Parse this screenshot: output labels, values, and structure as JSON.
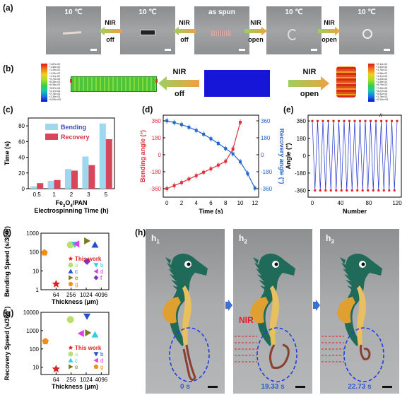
{
  "panel_labels": {
    "a": "(a)",
    "b": "(b)",
    "c": "(c)",
    "d": "(d)",
    "e": "(e)",
    "f": "(f)",
    "g": "(g)",
    "h": "(h)"
  },
  "panel_a": {
    "photos": [
      "10 ℃",
      "10 ℃",
      "as spun",
      "10 ℃",
      "10 ℃"
    ],
    "arrows": [
      {
        "line1": "NIR",
        "line2": "off"
      },
      {
        "line1": "NIR",
        "line2": "off"
      },
      {
        "line1": "NIR",
        "line2": "open"
      },
      {
        "line1": "NIR",
        "line2": "open"
      }
    ]
  },
  "panel_b": {
    "arrow_left": {
      "line1": "NIR",
      "line2": "off"
    },
    "arrow_right": {
      "line1": "NIR",
      "line2": "open"
    },
    "legend_left": [
      "+1.67e-02",
      "+1.53e-02",
      "+1.39e-02",
      "+1.25e-02",
      "+1.11e-02",
      "+9.74e-03",
      "+8.35e-03",
      "+6.96e-03",
      "+5.57e-03",
      "+4.17e-03",
      "+2.78e-03",
      "+1.39e-03",
      "+0.00e+00"
    ],
    "legend_right": [
      "+2.11e-02",
      "+1.93e-02",
      "+1.76e-02",
      "+1.58e-02",
      "+1.41e-02",
      "+1.23e-02",
      "+1.06e-02",
      "+8.79e-03",
      "+7.03e-03",
      "+5.27e-03",
      "+3.52e-03",
      "+1.76e-03",
      "+0.00e+00"
    ]
  },
  "chart_data": [
    {
      "id": "c",
      "type": "bar",
      "categories": [
        "0.5",
        "1",
        "2",
        "3",
        "5"
      ],
      "series": [
        {
          "name": "Bending",
          "color": "#9fd8ee",
          "values": [
            3,
            10,
            25,
            41,
            83
          ]
        },
        {
          "name": "Recovery",
          "color": "#d9455a",
          "values": [
            7,
            11,
            23,
            30,
            63
          ]
        }
      ],
      "ylabel": "Time (s)",
      "xlabel_line1": "Fe3O4/PAN",
      "xlabel_line2": "Electrospinning Time (h)",
      "ylim": [
        0,
        90
      ],
      "yticks": [
        "0",
        "20",
        "40",
        "60",
        "80"
      ]
    },
    {
      "id": "d",
      "type": "line",
      "xlabel": "Time (s)",
      "ylabel_left": "Bending angle (°)",
      "ylabel_right": "Recovery angle (°)",
      "xticks": [
        "0",
        "2",
        "4",
        "6",
        "8",
        "10",
        "12"
      ],
      "yticks_left": [
        "360",
        "180",
        "0",
        "-180",
        "-360"
      ],
      "yticks_right": [
        "360",
        "180",
        "0",
        "-180",
        "-360"
      ],
      "xlim": [
        -0.5,
        12.5
      ],
      "ylim": [
        -450,
        420
      ],
      "series": [
        {
          "name": "Bending",
          "color": "#e0303c",
          "x": [
            0,
            1,
            2,
            3,
            4,
            5,
            6,
            7,
            8,
            9,
            10
          ],
          "y": [
            -360,
            -328,
            -295,
            -258,
            -222,
            -186,
            -150,
            -110,
            -70,
            60,
            345
          ]
        },
        {
          "name": "Recovery",
          "color": "#2266cc",
          "x": [
            0,
            1,
            2,
            3,
            4,
            5,
            6,
            7,
            8,
            9,
            10,
            11,
            12
          ],
          "y": [
            360,
            342,
            320,
            292,
            258,
            218,
            170,
            120,
            66,
            10,
            -75,
            -200,
            -355
          ]
        }
      ]
    },
    {
      "id": "e",
      "type": "line",
      "xlabel": "Number",
      "ylabel": "Angle (°)",
      "xticks": [
        "0",
        "40",
        "80",
        "120"
      ],
      "yticks": [
        "360",
        "180",
        "0",
        "-180",
        "-360"
      ],
      "break_label": "//",
      "xlim": [
        -6,
        126
      ],
      "ylim": [
        -430,
        420
      ],
      "cycles": 32,
      "amplitude": 360
    },
    {
      "id": "f",
      "type": "scatter",
      "xlabel": "Thickness (μm)",
      "ylabel": "Bending Speed (s/360°)",
      "xticks": [
        "64",
        "256",
        "1024",
        "4096"
      ],
      "yticks": [
        "1",
        "10",
        "100",
        "1000"
      ],
      "log_x": true,
      "log_y": true,
      "xlim": [
        16,
        8192
      ],
      "ylim": [
        1,
        1000
      ],
      "points": [
        {
          "label": "This work",
          "shape": "star",
          "color": "#e02020",
          "x": 64,
          "y": 2
        },
        {
          "label": "a",
          "shape": "circle",
          "color": "#b8e070",
          "x": 240,
          "y": 240
        },
        {
          "label": "b",
          "shape": "triangle-down",
          "color": "#30d0e0",
          "x": 360,
          "y": 250
        },
        {
          "label": "c",
          "shape": "triangle-up",
          "color": "#2050d0",
          "x": 2300,
          "y": 240
        },
        {
          "label": "d",
          "shape": "triangle-left",
          "color": "#e040e0",
          "x": 420,
          "y": 270
        },
        {
          "label": "e",
          "shape": "triangle-right",
          "color": "#7a7a20",
          "x": 1100,
          "y": 390
        },
        {
          "label": "f",
          "shape": "diamond",
          "color": "#8030c0",
          "x": 1100,
          "y": 32
        },
        {
          "label": "g",
          "shape": "pentagon",
          "color": "#f09010",
          "x": 22,
          "y": 92
        }
      ],
      "legend": [
        "This work",
        "a",
        "b",
        "c",
        "d",
        "e",
        "f",
        "g"
      ]
    },
    {
      "id": "g",
      "type": "scatter",
      "xlabel": "Thickness (μm)",
      "ylabel": "Recovery Speed (s/360°)",
      "xticks": [
        "64",
        "256",
        "1024",
        "4096"
      ],
      "yticks": [
        "10",
        "100",
        "1000",
        "10000"
      ],
      "log_x": true,
      "log_y": true,
      "xlim": [
        16,
        8192
      ],
      "ylim": [
        4,
        10000
      ],
      "points": [
        {
          "label": "This work",
          "shape": "star",
          "color": "#e02020",
          "x": 64,
          "y": 8
        },
        {
          "label": "a",
          "shape": "circle",
          "color": "#b8e070",
          "x": 240,
          "y": 4000
        },
        {
          "label": "b",
          "shape": "triangle-down",
          "color": "#2050d0",
          "x": 1100,
          "y": 6000
        },
        {
          "label": "c",
          "shape": "triangle-up",
          "color": "#30d0e0",
          "x": 2300,
          "y": 600
        },
        {
          "label": "d",
          "shape": "triangle-left",
          "color": "#e040e0",
          "x": 640,
          "y": 700
        },
        {
          "label": "e",
          "shape": "triangle-right",
          "color": "#7a7a20",
          "x": 1200,
          "y": 760
        },
        {
          "label": "g",
          "shape": "pentagon",
          "color": "#f09010",
          "x": 24,
          "y": 260
        }
      ],
      "legend": [
        "This work",
        "a",
        "b",
        "c",
        "d",
        "e",
        "g"
      ]
    }
  ],
  "panel_h": {
    "subpanels": [
      {
        "label": "h",
        "sub": "1",
        "time": "0 s",
        "nir": ""
      },
      {
        "label": "h",
        "sub": "2",
        "time": "19.33 s",
        "nir": "NIR"
      },
      {
        "label": "h",
        "sub": "3",
        "time": "22.73 s",
        "nir": ""
      }
    ]
  }
}
